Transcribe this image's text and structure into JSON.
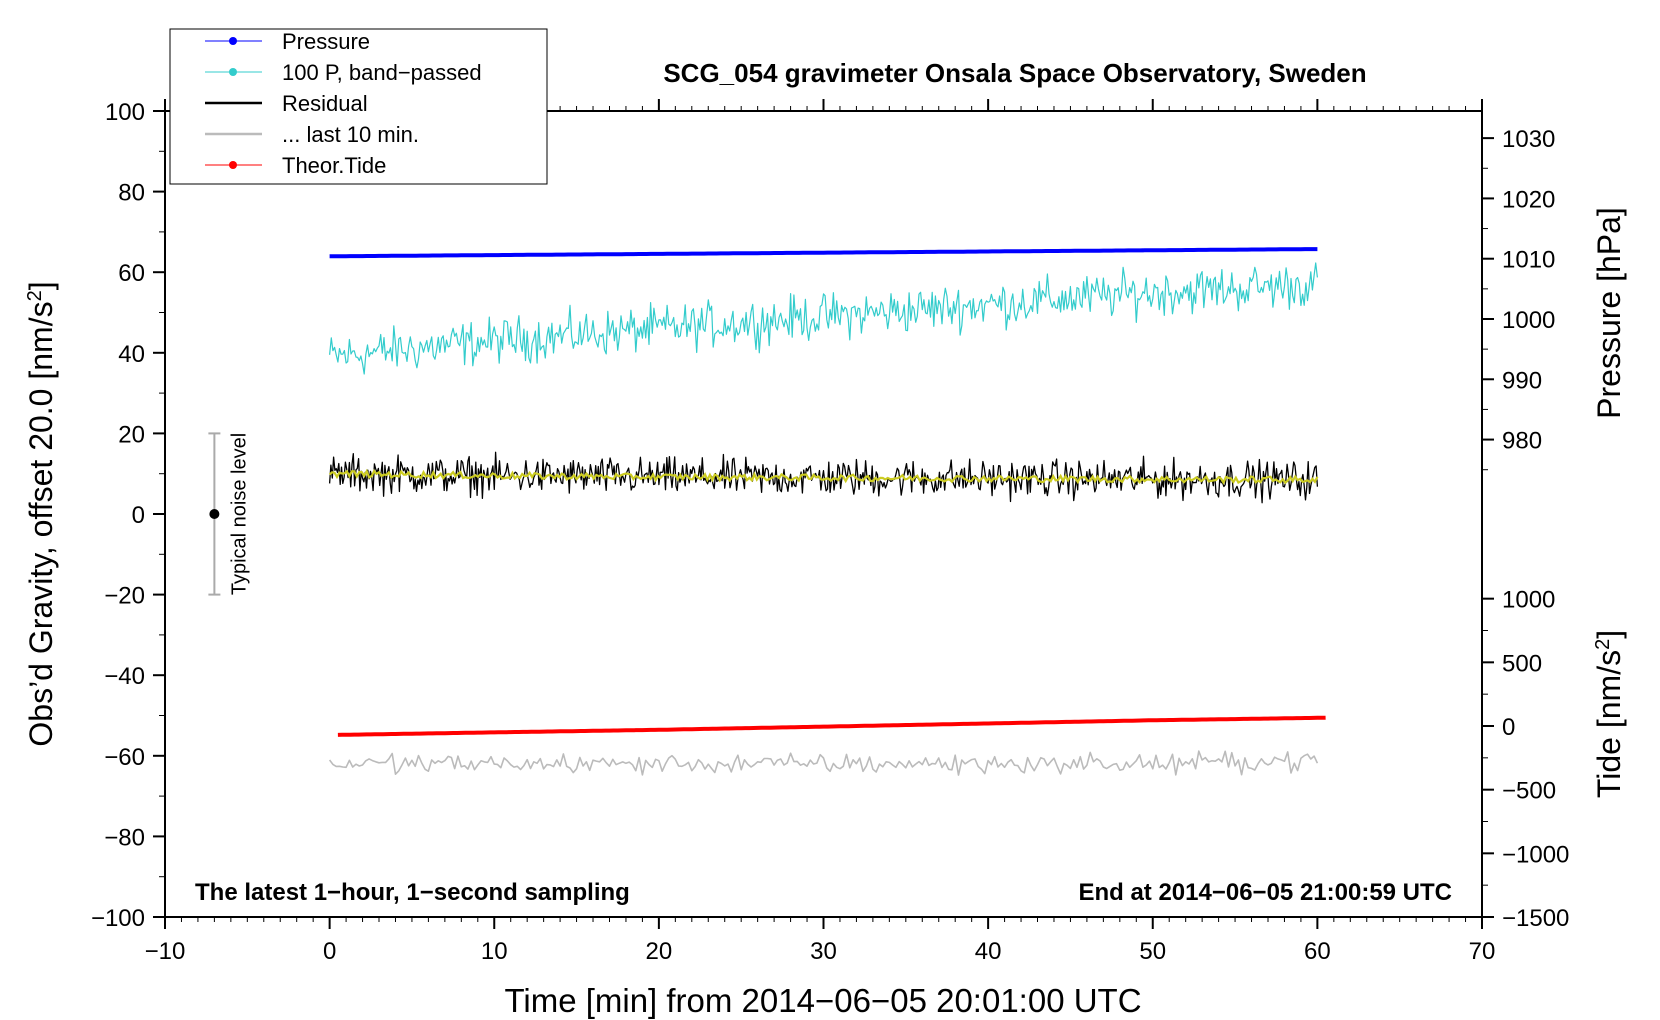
{
  "chart_data": {
    "type": "line",
    "title": "SCG_054 gravimeter Onsala Space Observatory, Sweden",
    "xlabel": "Time [min] from 2014−06−05 20:01:00 UTC",
    "ylabel_left_main": "Obs’d Gravity, offset 20.0 [nm/s",
    "ylabel_left_sup": "2",
    "ylabel_left_close": "]",
    "ylabel_right_pressure": "Pressure [hPa]",
    "ylabel_right_tide_main": "Tide [nm/s",
    "ylabel_right_tide_sup": "2",
    "ylabel_right_tide_close": "]",
    "xlim": [
      -10,
      70
    ],
    "ylim": [
      -100,
      100
    ],
    "pressure_lim": [
      965,
      1034.5
    ],
    "tide_lim": [
      -1500,
      1500
    ],
    "x_ticks": [
      {
        "v": -10,
        "t": "−10"
      },
      {
        "v": 0,
        "t": "0"
      },
      {
        "v": 10,
        "t": "10"
      },
      {
        "v": 20,
        "t": "20"
      },
      {
        "v": 30,
        "t": "30"
      },
      {
        "v": 40,
        "t": "40"
      },
      {
        "v": 50,
        "t": "50"
      },
      {
        "v": 60,
        "t": "60"
      },
      {
        "v": 70,
        "t": "70"
      }
    ],
    "y_ticks": [
      {
        "v": 100,
        "t": "100"
      },
      {
        "v": 80,
        "t": "80"
      },
      {
        "v": 60,
        "t": "60"
      },
      {
        "v": 40,
        "t": "40"
      },
      {
        "v": 20,
        "t": "20"
      },
      {
        "v": 0,
        "t": "0"
      },
      {
        "v": -20,
        "t": "−20"
      },
      {
        "v": -40,
        "t": "−40"
      },
      {
        "v": -60,
        "t": "−60"
      },
      {
        "v": -80,
        "t": "−80"
      },
      {
        "v": -100,
        "t": "−100"
      }
    ],
    "pressure_ticks": [
      {
        "v": 1030,
        "t": "1030"
      },
      {
        "v": 1020,
        "t": "1020"
      },
      {
        "v": 1010,
        "t": "1010"
      },
      {
        "v": 1000,
        "t": "1000"
      },
      {
        "v": 990,
        "t": "990"
      },
      {
        "v": 980,
        "t": "980"
      }
    ],
    "tide_ticks": [
      {
        "v": 1000,
        "t": "1000"
      },
      {
        "v": 500,
        "t": "500"
      },
      {
        "v": 0,
        "t": "0"
      },
      {
        "v": -500,
        "t": "−500"
      },
      {
        "v": -1000,
        "t": "−1000"
      },
      {
        "v": -1500,
        "t": "−1500"
      }
    ],
    "series": [
      {
        "name": "Pressure",
        "color": "#0000ff",
        "axis": "pressure",
        "x": [
          0,
          10,
          20,
          30,
          40,
          50,
          60
        ],
        "values": [
          1010.4,
          1010.6,
          1010.8,
          1011.0,
          1011.2,
          1011.4,
          1011.6
        ]
      },
      {
        "name": "100 P, band−passed",
        "color": "#33cccc",
        "axis": "gravity",
        "x": [
          0,
          10,
          20,
          30,
          40,
          50,
          60
        ],
        "values": [
          39,
          43,
          46,
          49,
          52,
          55,
          57
        ]
      },
      {
        "name": "Residual",
        "color": "#000000",
        "axis": "gravity",
        "x": [
          0,
          10,
          20,
          30,
          40,
          50,
          60
        ],
        "values": [
          10,
          9.5,
          9.2,
          9.0,
          8.8,
          8.6,
          8.5
        ]
      },
      {
        "name": "... last 10 min.",
        "color": "#bbbbbb",
        "axis": "gravity",
        "x": [
          0,
          10,
          20,
          30,
          40,
          50,
          60
        ],
        "values": [
          -62,
          -62,
          -62,
          -62,
          -62,
          -62,
          -61
        ]
      },
      {
        "name": "Theor.Tide",
        "color": "#ff0000",
        "axis": "tide",
        "x": [
          0.5,
          10,
          20,
          30,
          40,
          50,
          60.5
        ],
        "values": [
          -70,
          -50,
          -30,
          -5,
          20,
          45,
          65
        ]
      }
    ],
    "smoothed_residual_color": "#cccc22",
    "noise_bar": {
      "x": -7,
      "center": 0,
      "low": -20,
      "high": 20,
      "label": "Typical noise level"
    },
    "annotation_left": "The latest 1−hour, 1−second sampling",
    "annotation_right": "End at 2014−06−05 21:00:59 UTC",
    "legend_position": "top-left",
    "grid": false
  }
}
